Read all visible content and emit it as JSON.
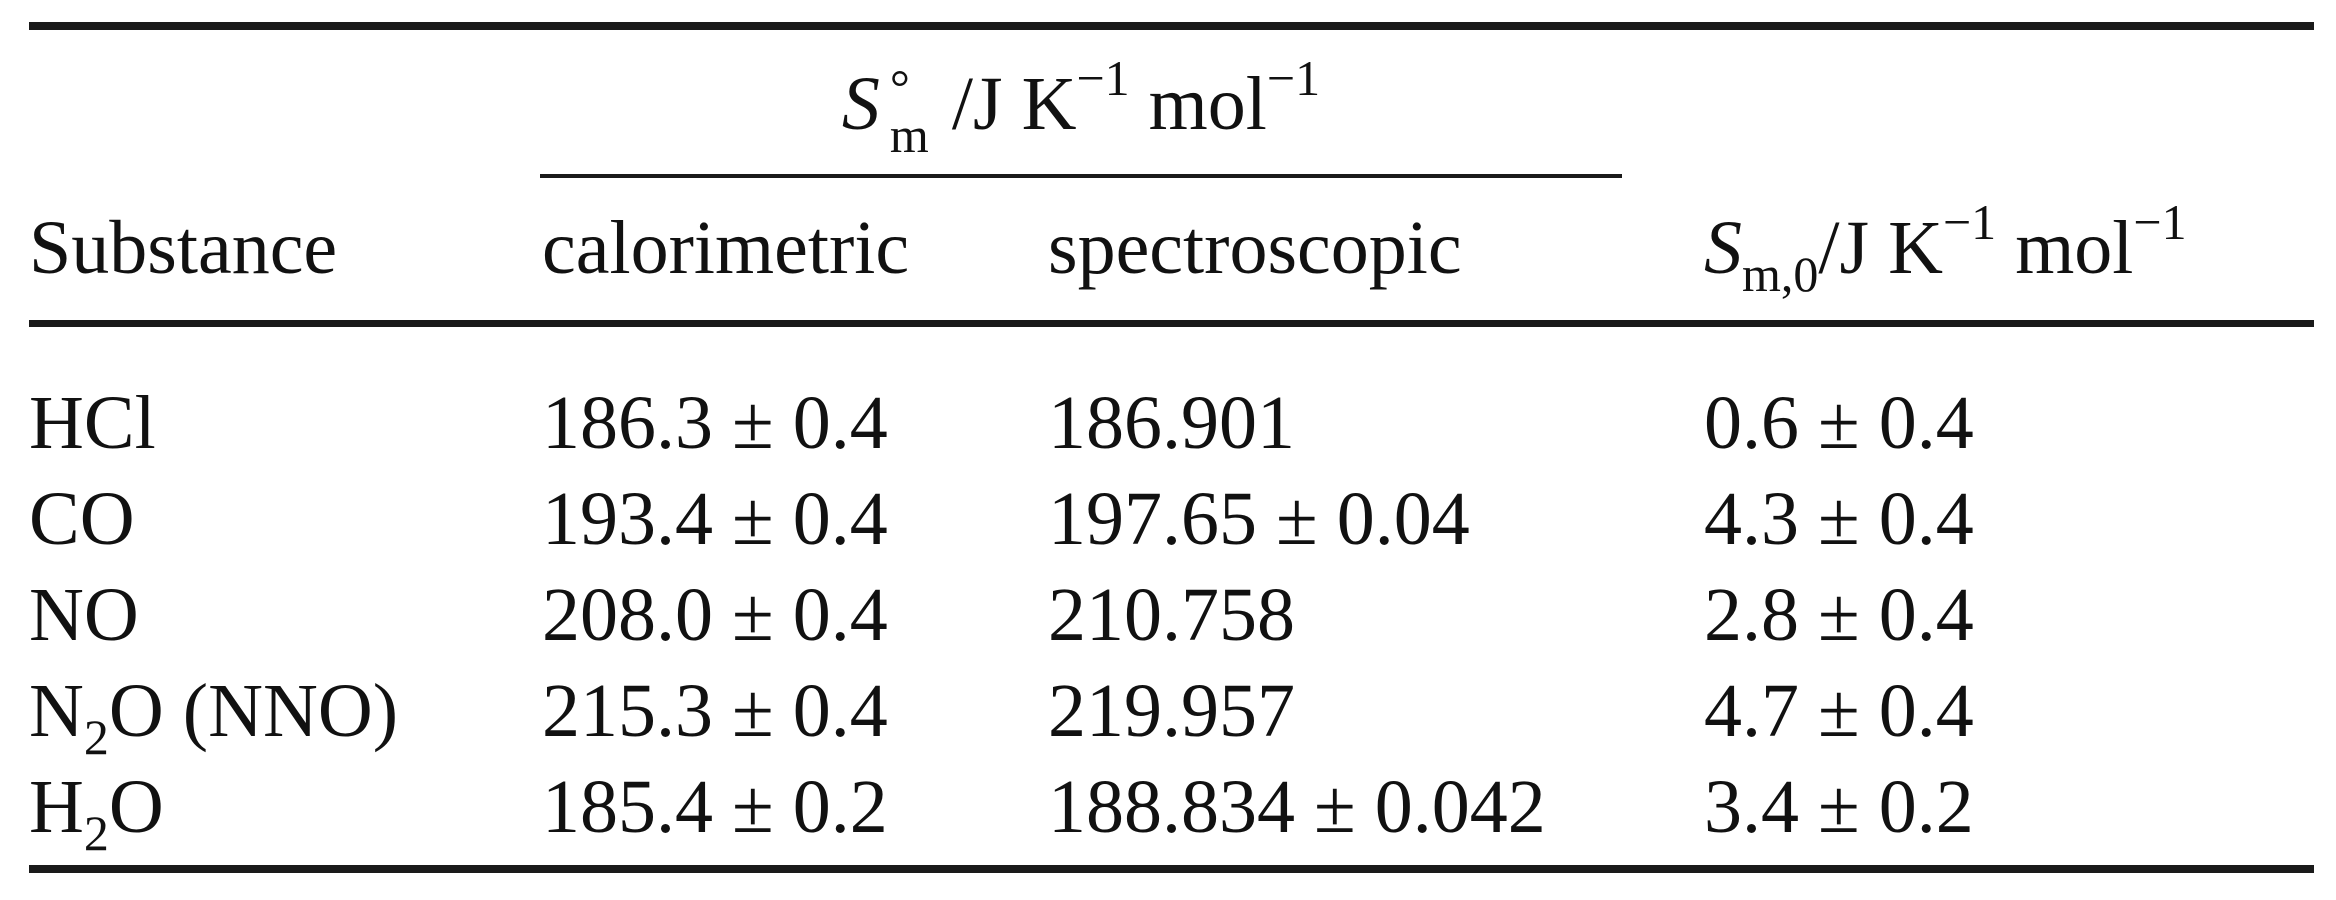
{
  "table": {
    "group_header": {
      "symbol": "S",
      "superscript": "°",
      "subscript": "m",
      "unit": "/J K",
      "unit_exp1": "−1",
      "unit_mid": " mol",
      "unit_exp2": "−1"
    },
    "columns": {
      "substance": "Substance",
      "calorimetric": "calorimetric",
      "spectroscopic": "spectroscopic",
      "residual": {
        "symbol": "S",
        "subscript": "m,0",
        "unit": "/J K",
        "unit_exp1": "−1",
        "unit_mid": " mol",
        "unit_exp2": "−1"
      }
    },
    "rows": [
      {
        "substance": "HCl",
        "sub_main": "",
        "sub_index": "",
        "sub_tail": "",
        "calorimetric": "186.3 ± 0.4",
        "spectroscopic": "186.901",
        "residual": "0.6 ± 0.4"
      },
      {
        "substance": "CO",
        "sub_main": "",
        "sub_index": "",
        "sub_tail": "",
        "calorimetric": "193.4 ± 0.4",
        "spectroscopic": "197.65 ± 0.04",
        "residual": "4.3 ± 0.4"
      },
      {
        "substance": "NO",
        "sub_main": "",
        "sub_index": "",
        "sub_tail": "",
        "calorimetric": "208.0 ± 0.4",
        "spectroscopic": "210.758",
        "residual": "2.8 ± 0.4"
      },
      {
        "substance": "",
        "sub_main": "N",
        "sub_index": "2",
        "sub_tail": "O (NNO)",
        "calorimetric": "215.3 ± 0.4",
        "spectroscopic": "219.957",
        "residual": "4.7 ± 0.4"
      },
      {
        "substance": "",
        "sub_main": "H",
        "sub_index": "2",
        "sub_tail": "O",
        "calorimetric": "185.4 ± 0.2",
        "spectroscopic": "188.834 ± 0.042",
        "residual": "3.4 ± 0.2"
      }
    ]
  }
}
